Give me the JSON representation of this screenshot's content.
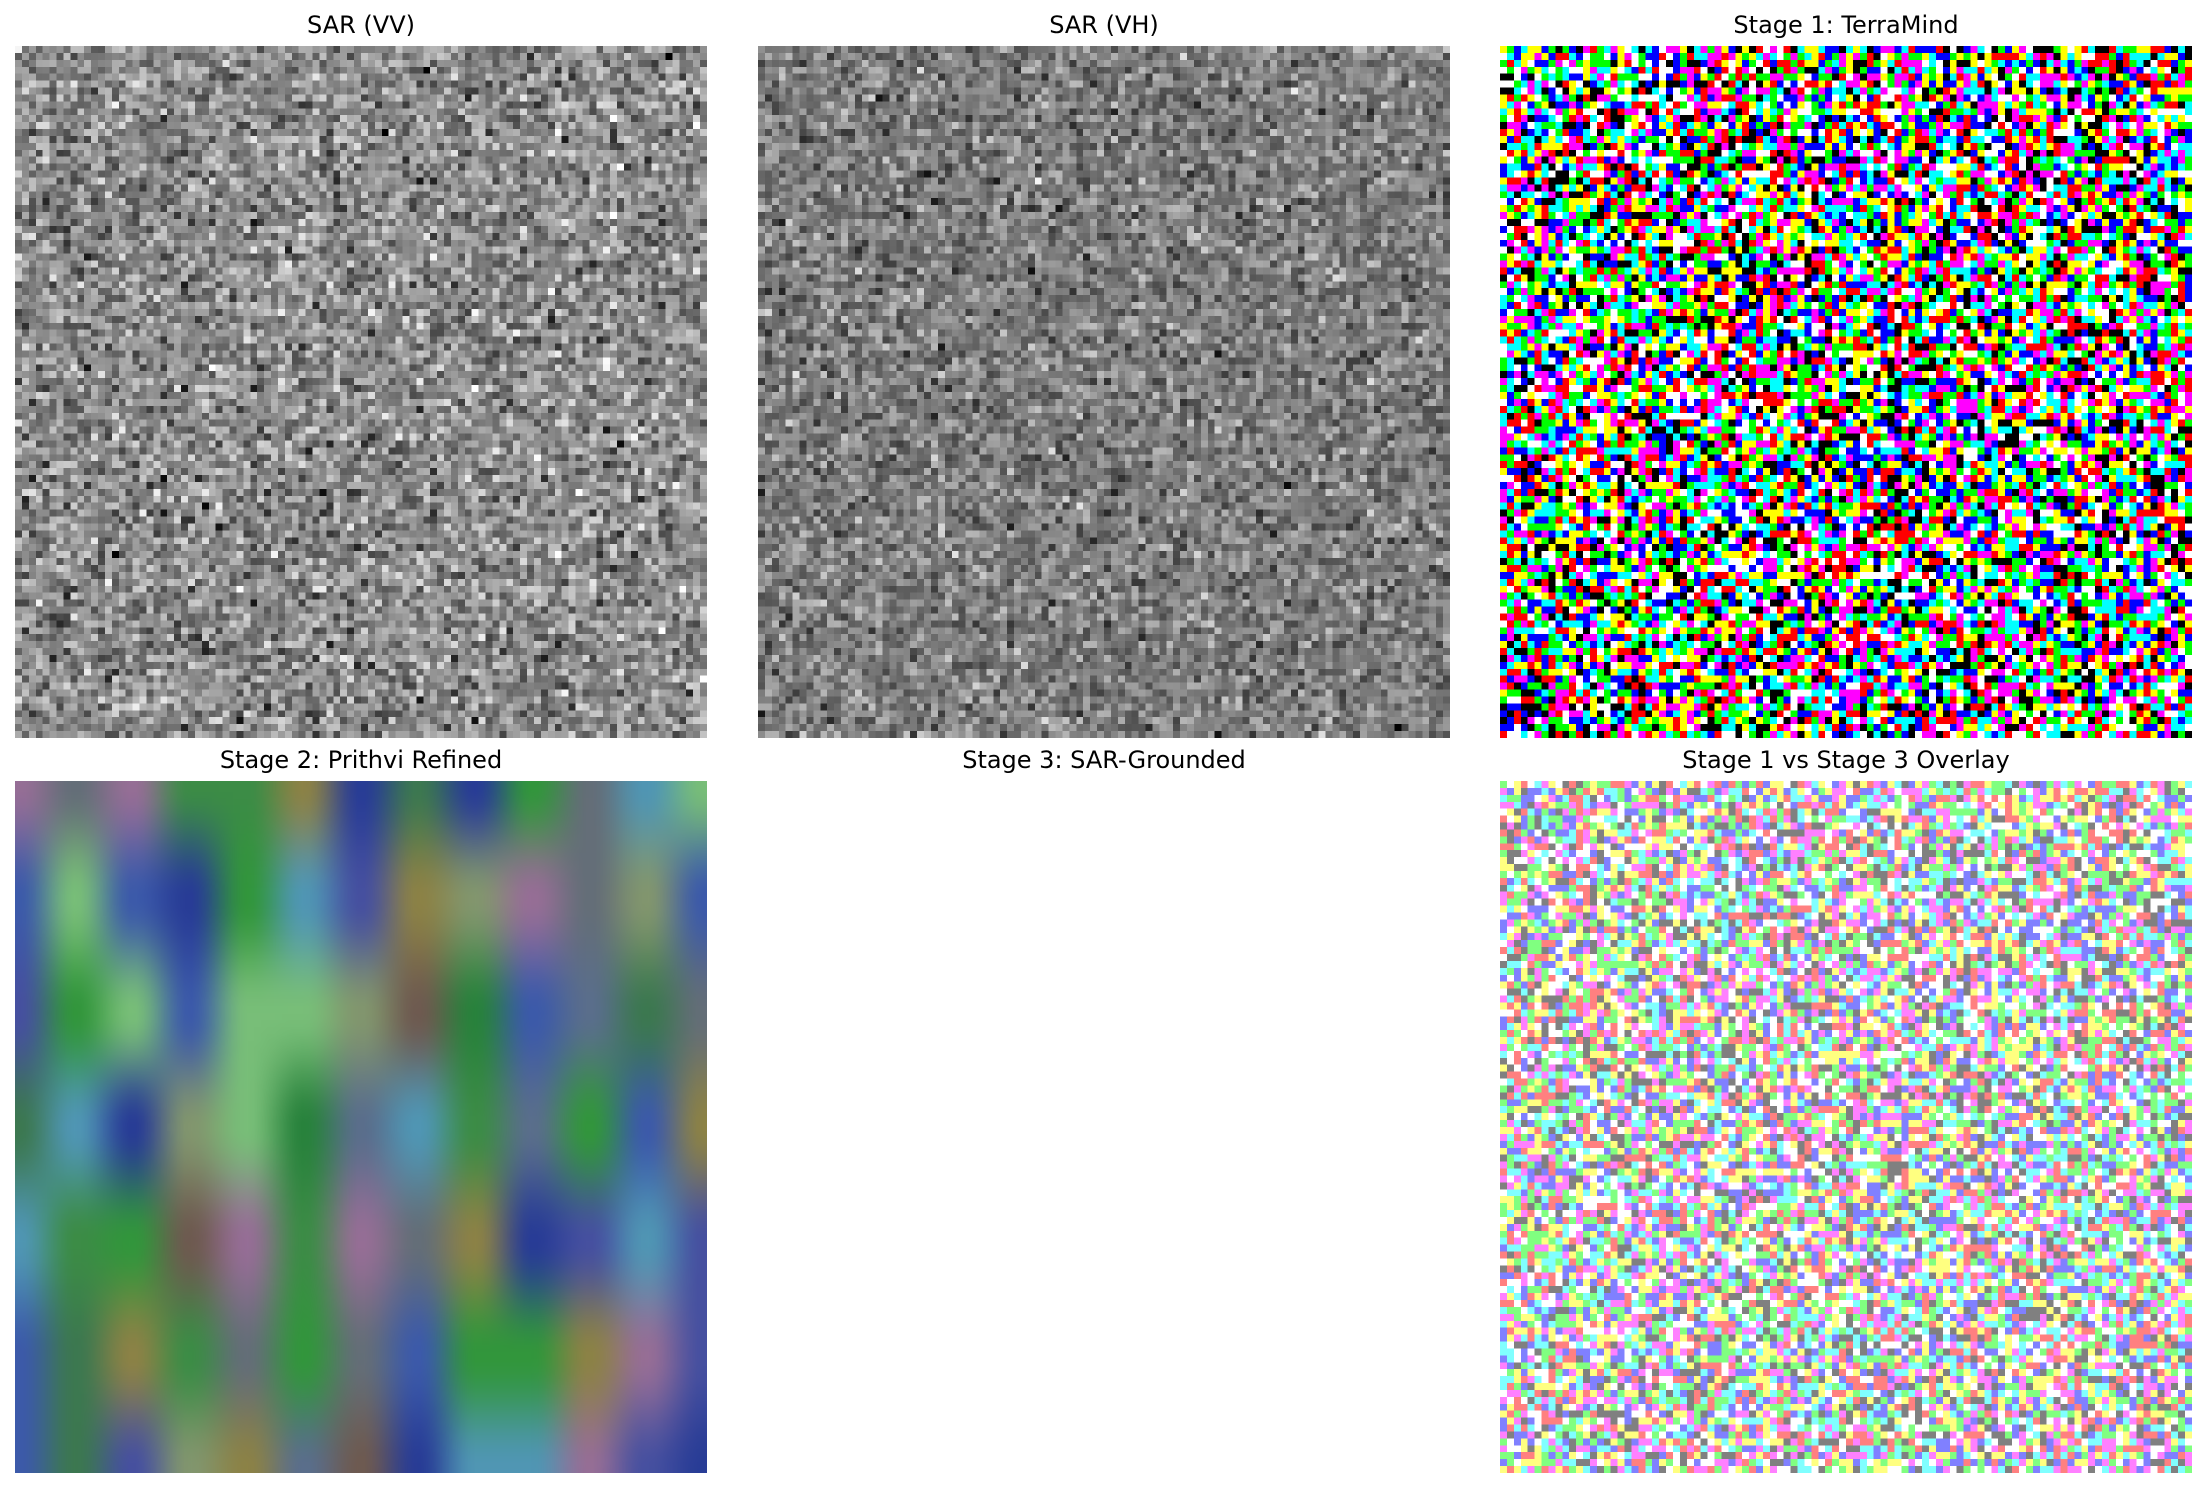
{
  "figure": {
    "panels": [
      {
        "id": "sar-vv",
        "title": "SAR (VV)",
        "content": "grayscale-noise"
      },
      {
        "id": "sar-vh",
        "title": "SAR (VH)",
        "content": "grayscale-noise"
      },
      {
        "id": "stage1",
        "title": "Stage 1: TerraMind",
        "content": "rgb-noise"
      },
      {
        "id": "stage2",
        "title": "Stage 2: Prithvi Refined",
        "content": "blurred-color-field"
      },
      {
        "id": "stage3",
        "title": "Stage 3: SAR-Grounded",
        "content": "empty"
      },
      {
        "id": "overlay",
        "title": "Stage 1 vs Stage 3 Overlay",
        "content": "pastel-rgb-noise"
      }
    ]
  }
}
